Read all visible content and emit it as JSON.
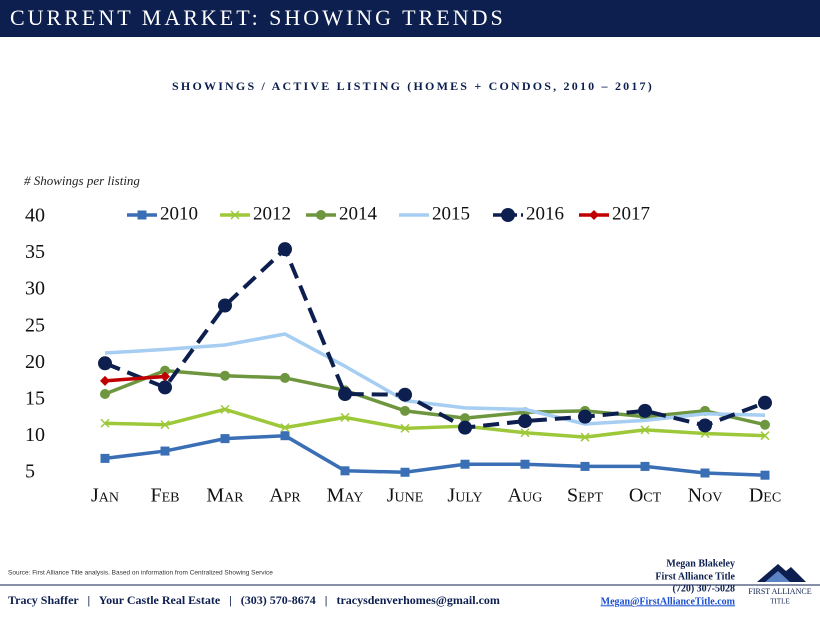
{
  "header": {
    "title": "CURRENT MARKET: SHOWING TRENDS"
  },
  "chart_data": {
    "type": "line",
    "title": "SHOWINGS / ACTIVE LISTING (HOMES + CONDOS, 2010 – 2017)",
    "y_label": "# Showings per listing",
    "categories": [
      "Jan",
      "Feb",
      "Mar",
      "Apr",
      "May",
      "June",
      "July",
      "Aug",
      "Sept",
      "Oct",
      "Nov",
      "Dec"
    ],
    "ylim": [
      5,
      40
    ],
    "yticks": [
      5,
      10,
      15,
      20,
      25,
      30,
      35,
      40
    ],
    "grid": false,
    "legend": "top",
    "series": [
      {
        "name": "2010",
        "color": "#3a6fb5",
        "marker": "square",
        "dash": false,
        "values": [
          7,
          8,
          9.7,
          10.1,
          5.3,
          5.1,
          6.2,
          6.2,
          5.9,
          5.9,
          5,
          4.7
        ]
      },
      {
        "name": "2012",
        "color": "#9dc83a",
        "marker": "x",
        "dash": false,
        "values": [
          11.8,
          11.6,
          13.7,
          11.2,
          12.6,
          11.1,
          11.4,
          10.5,
          9.9,
          10.9,
          10.4,
          10.1
        ]
      },
      {
        "name": "2014",
        "color": "#6e963e",
        "marker": "circle",
        "dash": false,
        "values": [
          15.8,
          19,
          18.3,
          18,
          16.3,
          13.5,
          12.5,
          13.3,
          13.5,
          12.7,
          13.5,
          11.6
        ]
      },
      {
        "name": "2015",
        "color": "#a6cdf2",
        "marker": "none",
        "dash": false,
        "values": [
          21.4,
          21.9,
          22.5,
          24,
          19.6,
          14.9,
          13.9,
          13.7,
          11.7,
          12.2,
          13.1,
          12.9
        ]
      },
      {
        "name": "2016",
        "color": "#0d1f4f",
        "marker": "bigcircle",
        "dash": true,
        "values": [
          20,
          16.7,
          27.9,
          35.6,
          15.8,
          15.7,
          11.2,
          12.1,
          12.7,
          13.5,
          11.5,
          14.6
        ]
      },
      {
        "name": "2017",
        "color": "#c00000",
        "marker": "diamond",
        "dash": false,
        "values": [
          17.6,
          18.2,
          null,
          null,
          null,
          null,
          null,
          null,
          null,
          null,
          null,
          null
        ]
      }
    ]
  },
  "footer": {
    "source": "Source: First Alliance Title analysis. Based on information from Centralized Showing Service",
    "agent_line": "Tracy Shaffer   |   Your Castle Real Estate   |   (303) 570-8674   |   tracysdenverhomes@gmail.com",
    "contact": {
      "name": "Megan Blakeley",
      "company": "First Alliance Title",
      "phone": "(720) 307-5028",
      "email": "Megan@FirstAllianceTitle.com"
    },
    "logo": {
      "line1": "FIRST ALLIANCE",
      "line2": "TITLE"
    }
  }
}
